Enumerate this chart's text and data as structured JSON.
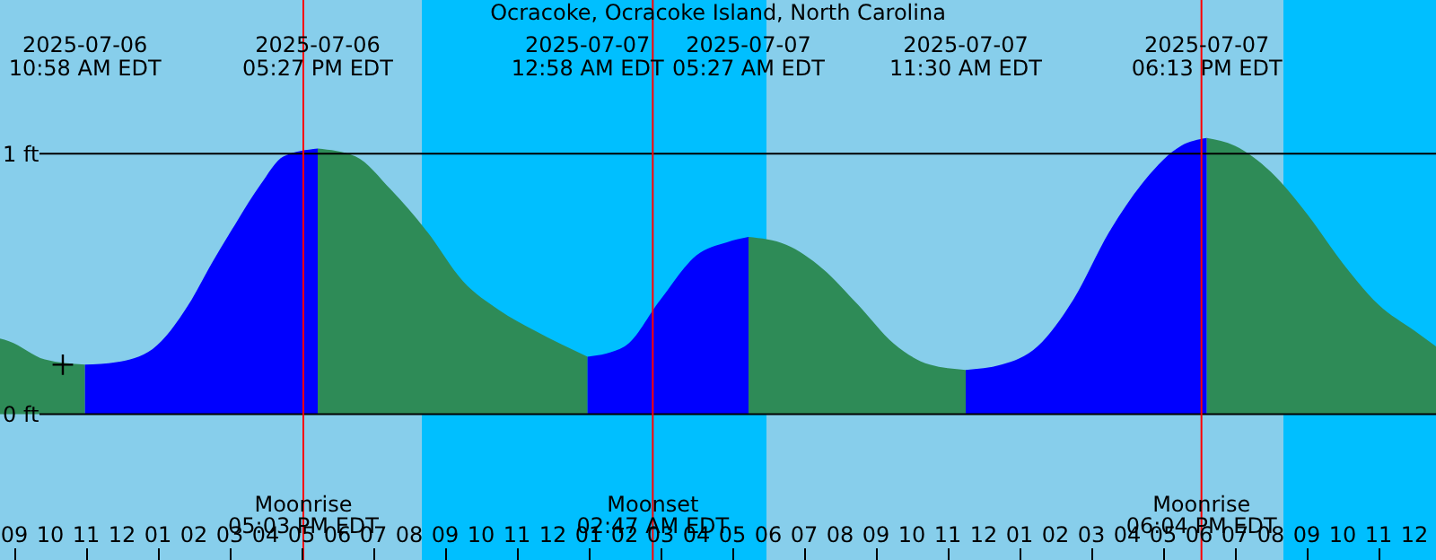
{
  "chart_data": {
    "type": "area",
    "title": "Ocracoke, Ocracoke Island, North Carolina",
    "xlim": [
      "2025-07-06T08:36",
      "2025-07-08T00:36"
    ],
    "ylim": [
      -0.56,
      1.59
    ],
    "yticks": [
      {
        "value": 0,
        "label": "0 ft"
      },
      {
        "value": 1,
        "label": "1 ft"
      }
    ],
    "xticks": [
      {
        "value": "2025-07-06T09:00",
        "label": "09"
      },
      {
        "value": "2025-07-06T10:00",
        "label": "10"
      },
      {
        "value": "2025-07-06T11:00",
        "label": "11"
      },
      {
        "value": "2025-07-06T12:00",
        "label": "12"
      },
      {
        "value": "2025-07-06T13:00",
        "label": "01"
      },
      {
        "value": "2025-07-06T14:00",
        "label": "02"
      },
      {
        "value": "2025-07-06T15:00",
        "label": "03"
      },
      {
        "value": "2025-07-06T16:00",
        "label": "04"
      },
      {
        "value": "2025-07-06T17:00",
        "label": "05"
      },
      {
        "value": "2025-07-06T18:00",
        "label": "06"
      },
      {
        "value": "2025-07-06T19:00",
        "label": "07"
      },
      {
        "value": "2025-07-06T20:00",
        "label": "08"
      },
      {
        "value": "2025-07-06T21:00",
        "label": "09"
      },
      {
        "value": "2025-07-06T22:00",
        "label": "10"
      },
      {
        "value": "2025-07-06T23:00",
        "label": "11"
      },
      {
        "value": "2025-07-07T00:00",
        "label": "12"
      },
      {
        "value": "2025-07-07T01:00",
        "label": "01"
      },
      {
        "value": "2025-07-07T02:00",
        "label": "02"
      },
      {
        "value": "2025-07-07T03:00",
        "label": "03"
      },
      {
        "value": "2025-07-07T04:00",
        "label": "04"
      },
      {
        "value": "2025-07-07T05:00",
        "label": "05"
      },
      {
        "value": "2025-07-07T06:00",
        "label": "06"
      },
      {
        "value": "2025-07-07T07:00",
        "label": "07"
      },
      {
        "value": "2025-07-07T08:00",
        "label": "08"
      },
      {
        "value": "2025-07-07T09:00",
        "label": "09"
      },
      {
        "value": "2025-07-07T10:00",
        "label": "10"
      },
      {
        "value": "2025-07-07T11:00",
        "label": "11"
      },
      {
        "value": "2025-07-07T12:00",
        "label": "12"
      },
      {
        "value": "2025-07-07T13:00",
        "label": "01"
      },
      {
        "value": "2025-07-07T14:00",
        "label": "02"
      },
      {
        "value": "2025-07-07T15:00",
        "label": "03"
      },
      {
        "value": "2025-07-07T16:00",
        "label": "04"
      },
      {
        "value": "2025-07-07T17:00",
        "label": "05"
      },
      {
        "value": "2025-07-07T18:00",
        "label": "06"
      },
      {
        "value": "2025-07-07T19:00",
        "label": "07"
      },
      {
        "value": "2025-07-07T20:00",
        "label": "08"
      },
      {
        "value": "2025-07-07T21:00",
        "label": "09"
      },
      {
        "value": "2025-07-07T22:00",
        "label": "10"
      },
      {
        "value": "2025-07-07T23:00",
        "label": "11"
      },
      {
        "value": "2025-07-08T00:00",
        "label": "12"
      }
    ],
    "grid": "y",
    "bands": [
      {
        "axis": "x",
        "from": "2025-07-06T20:21",
        "to": "2025-07-07T05:57",
        "color": "#00bfff"
      },
      {
        "axis": "x",
        "from": "2025-07-07T20:21",
        "to": "2025-07-08T00:36",
        "color": "#00bfff"
      }
    ],
    "series": [
      {
        "color": "#2e8b57",
        "x": [
          "2025-07-06T08:36",
          "2025-07-06T08:51",
          "2025-07-06T09:51",
          "2025-07-06T10:58"
        ],
        "values": [
          0.29,
          0.28,
          0.21,
          0.19
        ]
      },
      {
        "color": "#0000ff",
        "x": [
          "2025-07-06T10:58",
          "2025-07-06T11:51",
          "2025-07-06T12:51",
          "2025-07-06T13:51",
          "2025-07-06T14:30",
          "2025-07-06T15:12",
          "2025-07-06T15:51",
          "2025-07-06T16:30",
          "2025-07-06T17:27"
        ],
        "values": [
          0.19,
          0.2,
          0.25,
          0.42,
          0.58,
          0.74,
          0.88,
          0.99,
          1.02
        ]
      },
      {
        "color": "#2e8b57",
        "x": [
          "2025-07-06T17:27",
          "2025-07-06T18:30",
          "2025-07-06T19:30",
          "2025-07-06T20:30",
          "2025-07-06T21:30",
          "2025-07-06T22:30",
          "2025-07-06T23:30",
          "2025-07-07T00:58"
        ],
        "values": [
          1.02,
          0.99,
          0.86,
          0.7,
          0.51,
          0.4,
          0.32,
          0.22
        ]
      },
      {
        "color": "#0000ff",
        "x": [
          "2025-07-07T00:58",
          "2025-07-07T02:00",
          "2025-07-07T03:00",
          "2025-07-07T04:00",
          "2025-07-07T04:51",
          "2025-07-07T05:27"
        ],
        "values": [
          0.22,
          0.26,
          0.44,
          0.61,
          0.66,
          0.68
        ]
      },
      {
        "color": "#2e8b57",
        "x": [
          "2025-07-07T05:27",
          "2025-07-07T06:30",
          "2025-07-07T07:30",
          "2025-07-07T08:30",
          "2025-07-07T09:30",
          "2025-07-07T10:30",
          "2025-07-07T11:30"
        ],
        "values": [
          0.68,
          0.65,
          0.56,
          0.42,
          0.27,
          0.19,
          0.17
        ]
      },
      {
        "color": "#0000ff",
        "x": [
          "2025-07-07T11:30",
          "2025-07-07T12:30",
          "2025-07-07T13:30",
          "2025-07-07T14:30",
          "2025-07-07T15:30",
          "2025-07-07T16:30",
          "2025-07-07T17:30",
          "2025-07-07T18:13"
        ],
        "values": [
          0.17,
          0.19,
          0.26,
          0.44,
          0.7,
          0.9,
          1.03,
          1.06
        ]
      },
      {
        "color": "#2e8b57",
        "x": [
          "2025-07-07T18:13",
          "2025-07-07T19:00",
          "2025-07-07T20:00",
          "2025-07-07T21:00",
          "2025-07-07T22:00",
          "2025-07-07T23:00",
          "2025-07-08T00:00",
          "2025-07-08T00:36"
        ],
        "values": [
          1.06,
          1.03,
          0.93,
          0.77,
          0.58,
          0.42,
          0.32,
          0.26
        ]
      },
      {
        "type": "scatter",
        "color": "#000000",
        "marker": "cross",
        "x": [
          "2025-07-06T10:21"
        ],
        "values": [
          0.19
        ]
      }
    ],
    "ref_lines": [
      {
        "axis": "x",
        "value": "2025-07-06T17:03",
        "label": "Moonrise\n05:03 PM EDT",
        "color": "#ff0000"
      },
      {
        "axis": "x",
        "value": "2025-07-07T02:47",
        "label": "Moonset\n02:47 AM EDT",
        "color": "#ff0000"
      },
      {
        "axis": "x",
        "value": "2025-07-07T18:04",
        "label": "Moonrise\n06:04 PM EDT",
        "color": "#ff0000"
      }
    ],
    "annotations": [
      "2025-07-06\n10:58 AM EDT",
      "2025-07-06\n05:27 PM EDT",
      "2025-07-07\n12:58 AM EDT",
      "2025-07-07\n05:27 AM EDT",
      "2025-07-07\n11:30 AM EDT",
      "2025-07-07\n06:13 PM EDT"
    ]
  }
}
